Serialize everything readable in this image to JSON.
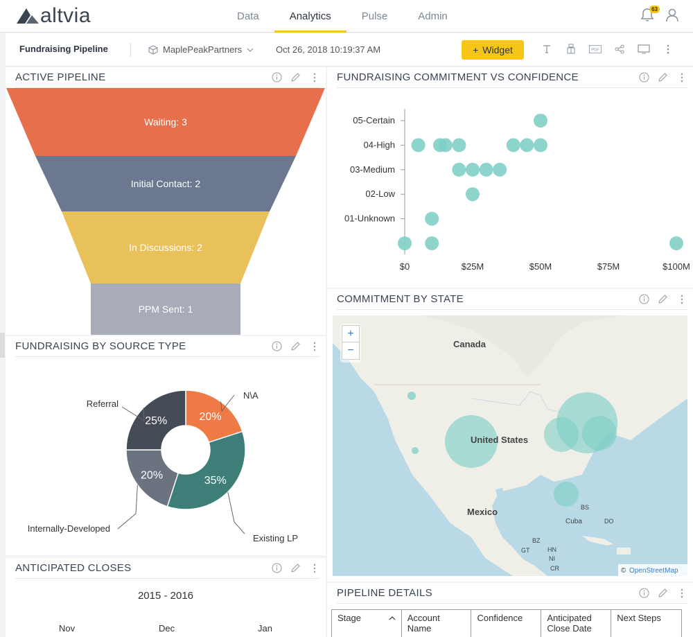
{
  "app": {
    "logo_text": "altvia"
  },
  "nav": {
    "tabs": [
      "Data",
      "Analytics",
      "Pulse",
      "Admin"
    ],
    "active": "Analytics",
    "notification_count": "63"
  },
  "toolbar": {
    "dashboard_title": "Fundraising Pipeline",
    "partner": "MaplePeakPartners",
    "timestamp": "Oct 26, 2018 10:19:37 AM",
    "widget_label": "Widget",
    "pdf_label": "PDF"
  },
  "panels": {
    "active_pipeline": {
      "title": "ACTIVE PIPELINE",
      "chart_data": {
        "type": "funnel",
        "categories": [
          "Waiting",
          "Initial Contact",
          "In Discussions",
          "PPM Sent"
        ],
        "values": [
          3,
          2,
          2,
          1
        ],
        "labels": [
          "Waiting: 3",
          "Initial Contact: 2",
          "In Discussions: 2",
          "PPM Sent: 1"
        ],
        "colors": [
          "#e5704b",
          "#6b7890",
          "#e8c15a",
          "#a8acb8"
        ]
      }
    },
    "commitment_vs_confidence": {
      "title": "FUNDRAISING COMMITMENT VS CONFIDENCE",
      "chart_data": {
        "type": "scatter",
        "y_categories": [
          "05-Certain",
          "04-High",
          "03-Medium",
          "02-Low",
          "01-Unknown",
          ""
        ],
        "x_ticks": [
          "$0",
          "$25M",
          "$50M",
          "$75M",
          "$100M"
        ],
        "xlim": [
          0,
          100
        ],
        "x_unit": "$M",
        "color": "#7fcfc7",
        "points": [
          {
            "x": 50,
            "y": "05-Certain"
          },
          {
            "x": 5,
            "y": "04-High"
          },
          {
            "x": 13,
            "y": "04-High"
          },
          {
            "x": 15,
            "y": "04-High"
          },
          {
            "x": 20,
            "y": "04-High"
          },
          {
            "x": 40,
            "y": "04-High"
          },
          {
            "x": 45,
            "y": "04-High"
          },
          {
            "x": 50,
            "y": "04-High"
          },
          {
            "x": 20,
            "y": "03-Medium"
          },
          {
            "x": 25,
            "y": "03-Medium"
          },
          {
            "x": 30,
            "y": "03-Medium"
          },
          {
            "x": 35,
            "y": "03-Medium"
          },
          {
            "x": 25,
            "y": "02-Low"
          },
          {
            "x": 10,
            "y": "01-Unknown"
          },
          {
            "x": 0,
            "y": ""
          },
          {
            "x": 10,
            "y": ""
          },
          {
            "x": 100,
            "y": ""
          }
        ]
      }
    },
    "source_type": {
      "title": "FUNDRAISING BY SOURCE TYPE",
      "chart_data": {
        "type": "pie",
        "categories": [
          "N\\A",
          "Existing LP",
          "Internally-Developed",
          "Referral"
        ],
        "values": [
          20,
          35,
          20,
          25
        ],
        "value_labels": [
          "20%",
          "35%",
          "20%",
          "25%"
        ],
        "colors": [
          "#f07a45",
          "#3d7f78",
          "#6b7280",
          "#454b55"
        ]
      }
    },
    "commitment_by_state": {
      "title": "COMMITMENT BY STATE",
      "map_labels": [
        "Canada",
        "United States",
        "Mexico",
        "Cuba",
        "BS",
        "DO",
        "BZ",
        "GT",
        "HN",
        "NI",
        "CR"
      ],
      "zoom_in": "+",
      "zoom_out": "−",
      "attribution": "OpenStreetMap",
      "copyright": "©"
    },
    "anticipated_closes": {
      "title": "ANTICIPATED CLOSES",
      "range": "2015 - 2016",
      "months": [
        "Nov",
        "Dec",
        "Jan"
      ]
    },
    "pipeline_details": {
      "title": "PIPELINE DETAILS",
      "columns": [
        "Stage",
        "Account Name",
        "Confidence",
        "Anticipated Close Date",
        "Next Steps"
      ]
    }
  }
}
